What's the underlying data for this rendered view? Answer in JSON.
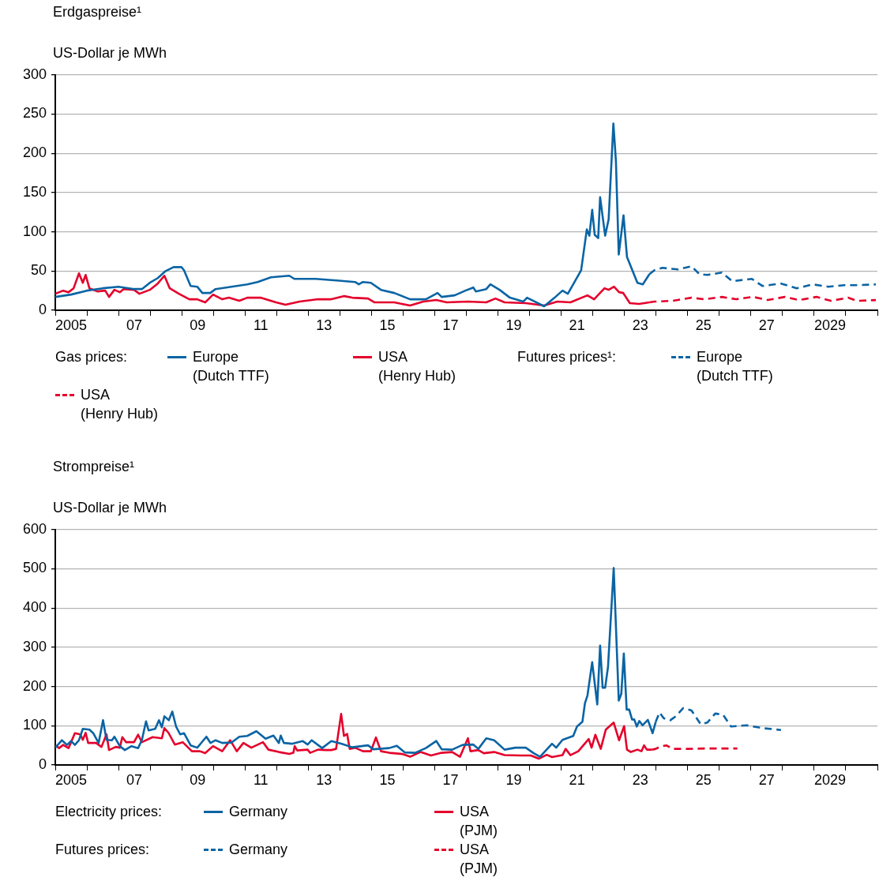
{
  "chart_data": [
    {
      "type": "line",
      "title": "Erdgaspreise¹",
      "ylabel": "US-Dollar je MWh",
      "xlim": [
        2004.5,
        2030.5
      ],
      "ylim": [
        0,
        300
      ],
      "yticks": [
        0,
        50,
        100,
        150,
        200,
        250,
        300
      ],
      "xticks": [
        {
          "value": 2004.5,
          "label": null
        },
        {
          "value": 2005,
          "label": "2005"
        },
        {
          "value": 2005.5,
          "label": null
        },
        {
          "value": 2006.5,
          "label": null
        },
        {
          "value": 2007,
          "label": "07"
        },
        {
          "value": 2007.5,
          "label": null
        },
        {
          "value": 2008.5,
          "label": null
        },
        {
          "value": 2009,
          "label": "09"
        },
        {
          "value": 2009.5,
          "label": null
        },
        {
          "value": 2010.5,
          "label": null
        },
        {
          "value": 2011,
          "label": "11"
        },
        {
          "value": 2011.5,
          "label": null
        },
        {
          "value": 2012.5,
          "label": null
        },
        {
          "value": 2013,
          "label": "13"
        },
        {
          "value": 2013.5,
          "label": null
        },
        {
          "value": 2014.5,
          "label": null
        },
        {
          "value": 2015,
          "label": "15"
        },
        {
          "value": 2015.5,
          "label": null
        },
        {
          "value": 2016.5,
          "label": null
        },
        {
          "value": 2017,
          "label": "17"
        },
        {
          "value": 2017.5,
          "label": null
        },
        {
          "value": 2018.5,
          "label": null
        },
        {
          "value": 2019,
          "label": "19"
        },
        {
          "value": 2019.5,
          "label": null
        },
        {
          "value": 2020.5,
          "label": null
        },
        {
          "value": 2021,
          "label": "21"
        },
        {
          "value": 2021.5,
          "label": null
        },
        {
          "value": 2022.5,
          "label": null
        },
        {
          "value": 2023,
          "label": "23"
        },
        {
          "value": 2023.5,
          "label": null
        },
        {
          "value": 2024.5,
          "label": null
        },
        {
          "value": 2025,
          "label": "25"
        },
        {
          "value": 2025.5,
          "label": null
        },
        {
          "value": 2026.5,
          "label": null
        },
        {
          "value": 2027,
          "label": "27"
        },
        {
          "value": 2027.5,
          "label": null
        },
        {
          "value": 2028.5,
          "label": null
        },
        {
          "value": 2029,
          "label": "2029"
        },
        {
          "value": 2029.5,
          "label": null
        },
        {
          "value": 2030.5,
          "label": null
        }
      ],
      "grid": "y",
      "legend": "bottom",
      "annotations": [
        "Gas prices:",
        "Futures prices¹:"
      ],
      "series": [
        {
          "name": "Europe (Dutch TTF)",
          "color": "#0a64a4",
          "line_style": "solid",
          "x": [
            2004.5,
            2005.0,
            2005.5,
            2006.0,
            2006.5,
            2007.0,
            2007.24,
            2007.49,
            2007.74,
            2007.99,
            2008.24,
            2008.49,
            2008.57,
            2008.78,
            2008.99,
            2009.15,
            2009.4,
            2009.57,
            2010.07,
            2010.57,
            2010.9,
            2011.32,
            2011.9,
            2012.06,
            2012.73,
            2013.39,
            2013.98,
            2014.1,
            2014.23,
            2014.48,
            2014.8,
            2015.22,
            2015.72,
            2016.22,
            2016.59,
            2016.72,
            2017.13,
            2017.47,
            2017.72,
            2017.8,
            2018.13,
            2018.26,
            2018.55,
            2018.88,
            2019.3,
            2019.42,
            2019.96,
            2020.29,
            2020.54,
            2020.71,
            2021.13,
            2021.31,
            2021.39,
            2021.48,
            2021.56,
            2021.67,
            2021.73,
            2021.89,
            2022.0,
            2022.15,
            2022.23,
            2022.32,
            2022.47,
            2022.58,
            2022.91,
            2023.08,
            2023.29
          ],
          "values": [
            17,
            20,
            25,
            28,
            30,
            27,
            27,
            35,
            41,
            50,
            55,
            55,
            51,
            31,
            30,
            22,
            22,
            27,
            30,
            33,
            36,
            42,
            44,
            40,
            40,
            38,
            36,
            33,
            36,
            35,
            26,
            22,
            14,
            14,
            22,
            17,
            19,
            25,
            29,
            24,
            27,
            33,
            26,
            16,
            11,
            16,
            5,
            16,
            25,
            21,
            51,
            103,
            95,
            128,
            96,
            92,
            144,
            95,
            116,
            238,
            190,
            71,
            121,
            68,
            35,
            33,
            46
          ]
        },
        {
          "name": "USA (Henry Hub)",
          "color": "#e4002b",
          "line_style": "solid",
          "x": [
            2004.5,
            2004.75,
            2004.92,
            2005.08,
            2005.25,
            2005.37,
            2005.46,
            2005.58,
            2005.83,
            2006.08,
            2006.2,
            2006.37,
            2006.54,
            2006.66,
            2006.99,
            2007.16,
            2007.49,
            2007.74,
            2007.95,
            2008.12,
            2008.41,
            2008.74,
            2008.99,
            2009.24,
            2009.49,
            2009.78,
            2009.99,
            2010.32,
            2010.57,
            2010.99,
            2011.48,
            2011.78,
            2012.23,
            2012.81,
            2013.23,
            2013.64,
            2013.89,
            2014.39,
            2014.6,
            2015.22,
            2015.72,
            2016.14,
            2016.55,
            2016.88,
            2017.55,
            2018.13,
            2018.42,
            2018.71,
            2019.38,
            2019.96,
            2020.38,
            2020.79,
            2021.33,
            2021.54,
            2021.87,
            2022.0,
            2022.17,
            2022.33,
            2022.46,
            2022.67,
            2022.96,
            2023.29
          ],
          "values": [
            21,
            25,
            23,
            28,
            47,
            35,
            45,
            28,
            24,
            25,
            17,
            26,
            23,
            27,
            26,
            21,
            26,
            34,
            44,
            28,
            21,
            14,
            14,
            10,
            20,
            14,
            16,
            12,
            16,
            16,
            10,
            7,
            11,
            14,
            14,
            18,
            16,
            15,
            10,
            10,
            6,
            11,
            13,
            10,
            11,
            10,
            15,
            10,
            9,
            6,
            11,
            10,
            19,
            14,
            28,
            26,
            30,
            23,
            22,
            9,
            8,
            10
          ]
        },
        {
          "name": "Europe (Dutch TTF)",
          "color": "#0a64a4",
          "line_style": "dashed",
          "x": [
            2023.29,
            2023.45,
            2023.7,
            2024.2,
            2024.62,
            2024.87,
            2025.12,
            2025.58,
            2025.91,
            2026.53,
            2026.86,
            2027.45,
            2027.95,
            2028.45,
            2028.95,
            2029.45,
            2029.95,
            2030.45
          ],
          "values": [
            46,
            51,
            54,
            52,
            56,
            46,
            45,
            48,
            37,
            40,
            31,
            34,
            28,
            33,
            30,
            32,
            32,
            33
          ]
        },
        {
          "name": "USA (Henry Hub)",
          "color": "#e4002b",
          "line_style": "dashed",
          "x": [
            2023.29,
            2023.45,
            2024.03,
            2024.62,
            2025.03,
            2025.58,
            2026.03,
            2026.57,
            2027.03,
            2027.57,
            2028.03,
            2028.57,
            2029.03,
            2029.57,
            2029.86,
            2030.45
          ],
          "values": [
            10,
            11,
            12,
            16,
            14,
            17,
            14,
            17,
            13,
            17,
            13,
            17,
            12,
            16,
            12,
            13
          ]
        }
      ]
    },
    {
      "type": "line",
      "title": "Strompreise¹",
      "ylabel": "US-Dollar je MWh",
      "xlim": [
        2004.5,
        2030.5
      ],
      "ylim": [
        0,
        600
      ],
      "yticks": [
        0,
        100,
        200,
        300,
        400,
        500,
        600
      ],
      "xticks": [
        {
          "value": 2004.5,
          "label": null
        },
        {
          "value": 2005,
          "label": "2005"
        },
        {
          "value": 2005.5,
          "label": null
        },
        {
          "value": 2006.5,
          "label": null
        },
        {
          "value": 2007,
          "label": "07"
        },
        {
          "value": 2007.5,
          "label": null
        },
        {
          "value": 2008.5,
          "label": null
        },
        {
          "value": 2009,
          "label": "09"
        },
        {
          "value": 2009.5,
          "label": null
        },
        {
          "value": 2010.5,
          "label": null
        },
        {
          "value": 2011,
          "label": "11"
        },
        {
          "value": 2011.5,
          "label": null
        },
        {
          "value": 2012.5,
          "label": null
        },
        {
          "value": 2013,
          "label": "13"
        },
        {
          "value": 2013.5,
          "label": null
        },
        {
          "value": 2014.5,
          "label": null
        },
        {
          "value": 2015,
          "label": "15"
        },
        {
          "value": 2015.5,
          "label": null
        },
        {
          "value": 2016.5,
          "label": null
        },
        {
          "value": 2017,
          "label": "17"
        },
        {
          "value": 2017.5,
          "label": null
        },
        {
          "value": 2018.5,
          "label": null
        },
        {
          "value": 2019,
          "label": "19"
        },
        {
          "value": 2019.5,
          "label": null
        },
        {
          "value": 2020.5,
          "label": null
        },
        {
          "value": 2021,
          "label": "21"
        },
        {
          "value": 2021.5,
          "label": null
        },
        {
          "value": 2022.5,
          "label": null
        },
        {
          "value": 2023,
          "label": "23"
        },
        {
          "value": 2023.5,
          "label": null
        },
        {
          "value": 2024.5,
          "label": null
        },
        {
          "value": 2025,
          "label": "25"
        },
        {
          "value": 2025.5,
          "label": null
        },
        {
          "value": 2026.5,
          "label": null
        },
        {
          "value": 2027,
          "label": "27"
        },
        {
          "value": 2027.5,
          "label": null
        },
        {
          "value": 2028.5,
          "label": null
        },
        {
          "value": 2029,
          "label": "2029"
        },
        {
          "value": 2029.5,
          "label": null
        },
        {
          "value": 2030.5,
          "label": null
        }
      ],
      "grid": "y",
      "legend": "bottom",
      "annotations": [
        "Electricity prices:",
        "Futures prices:"
      ],
      "series": [
        {
          "name": "Germany",
          "color": "#0a64a4",
          "line_style": "solid",
          "x": [
            2004.5,
            2004.71,
            2004.87,
            2005.0,
            2005.12,
            2005.25,
            2005.37,
            2005.58,
            2005.7,
            2005.87,
            2006.01,
            2006.12,
            2006.29,
            2006.37,
            2006.54,
            2006.7,
            2006.91,
            2007.12,
            2007.24,
            2007.37,
            2007.45,
            2007.66,
            2007.78,
            2007.87,
            2007.95,
            2008.09,
            2008.2,
            2008.32,
            2008.45,
            2008.57,
            2008.78,
            2008.99,
            2009.28,
            2009.41,
            2009.57,
            2009.78,
            2010.07,
            2010.32,
            2010.57,
            2010.86,
            2011.15,
            2011.4,
            2011.57,
            2011.63,
            2011.73,
            2011.98,
            2012.32,
            2012.48,
            2012.61,
            2012.94,
            2013.23,
            2013.56,
            2013.89,
            2014.39,
            2014.56,
            2015.06,
            2015.3,
            2015.55,
            2015.88,
            2016.22,
            2016.55,
            2016.72,
            2017.05,
            2017.38,
            2017.72,
            2017.88,
            2018.13,
            2018.38,
            2018.71,
            2019.05,
            2019.38,
            2019.63,
            2019.83,
            2020.21,
            2020.34,
            2020.54,
            2020.88,
            2021.0,
            2021.17,
            2021.25,
            2021.33,
            2021.48,
            2021.64,
            2021.73,
            2021.81,
            2021.89,
            2021.98,
            2022.16,
            2022.32,
            2022.4,
            2022.48,
            2022.57,
            2022.65,
            2022.74,
            2022.81,
            2022.89,
            2022.97,
            2023.07,
            2023.24,
            2023.39,
            2023.49
          ],
          "values": [
            44,
            63,
            51,
            61,
            51,
            63,
            92,
            90,
            81,
            56,
            114,
            64,
            63,
            72,
            48,
            38,
            48,
            43,
            64,
            111,
            88,
            92,
            114,
            96,
            124,
            114,
            136,
            98,
            78,
            81,
            50,
            44,
            72,
            56,
            63,
            56,
            57,
            72,
            74,
            86,
            67,
            75,
            56,
            75,
            56,
            54,
            61,
            52,
            63,
            43,
            61,
            54,
            45,
            50,
            40,
            43,
            49,
            32,
            31,
            43,
            61,
            40,
            39,
            51,
            52,
            41,
            68,
            63,
            39,
            44,
            44,
            30,
            21,
            54,
            44,
            64,
            74,
            98,
            110,
            157,
            177,
            262,
            154,
            304,
            197,
            197,
            250,
            502,
            164,
            181,
            284,
            141,
            141,
            116,
            116,
            98,
            112,
            101,
            115,
            81,
            110
          ]
        },
        {
          "name": "USA (PJM)",
          "color": "#e4002b",
          "line_style": "solid",
          "x": [
            2004.5,
            2004.62,
            2004.75,
            2004.92,
            2005.12,
            2005.29,
            2005.37,
            2005.46,
            2005.54,
            2005.79,
            2005.96,
            2006.12,
            2006.2,
            2006.41,
            2006.54,
            2006.62,
            2006.74,
            2006.99,
            2007.12,
            2007.24,
            2007.58,
            2007.87,
            2007.95,
            2008.08,
            2008.28,
            2008.53,
            2008.82,
            2009.07,
            2009.24,
            2009.49,
            2009.78,
            2010.03,
            2010.24,
            2010.45,
            2010.7,
            2010.91,
            2011.07,
            2011.24,
            2011.57,
            2011.9,
            2012.03,
            2012.07,
            2012.15,
            2012.48,
            2012.56,
            2012.81,
            2013.06,
            2013.23,
            2013.38,
            2013.54,
            2013.63,
            2013.73,
            2013.81,
            2013.98,
            2014.23,
            2014.48,
            2014.64,
            2014.8,
            2015.06,
            2015.47,
            2015.72,
            2016.05,
            2016.38,
            2016.72,
            2017.05,
            2017.3,
            2017.55,
            2017.63,
            2017.88,
            2018.05,
            2018.38,
            2018.71,
            2019.21,
            2019.54,
            2019.79,
            2020.04,
            2020.21,
            2020.54,
            2020.64,
            2020.79,
            2021.04,
            2021.37,
            2021.46,
            2021.58,
            2021.75,
            2021.91,
            2022.16,
            2022.33,
            2022.49,
            2022.58,
            2022.7,
            2022.91,
            2023.04,
            2023.12,
            2023.21,
            2023.37
          ],
          "values": [
            50,
            43,
            51,
            43,
            81,
            78,
            64,
            82,
            56,
            56,
            46,
            78,
            38,
            46,
            44,
            71,
            58,
            58,
            77,
            58,
            71,
            68,
            94,
            82,
            52,
            58,
            35,
            35,
            30,
            48,
            35,
            63,
            35,
            56,
            44,
            52,
            58,
            39,
            33,
            28,
            31,
            48,
            37,
            39,
            31,
            39,
            38,
            38,
            41,
            130,
            74,
            79,
            41,
            44,
            35,
            35,
            70,
            35,
            31,
            28,
            21,
            33,
            24,
            31,
            33,
            21,
            68,
            35,
            38,
            30,
            33,
            25,
            24,
            24,
            16,
            26,
            20,
            25,
            41,
            25,
            35,
            66,
            44,
            77,
            41,
            90,
            108,
            63,
            99,
            39,
            33,
            39,
            35,
            50,
            39,
            39
          ]
        },
        {
          "name": "Germany",
          "color": "#0a64a4",
          "line_style": "dashed",
          "x": [
            2023.49,
            2023.61,
            2023.74,
            2023.95,
            2024.12,
            2024.36,
            2024.62,
            2024.91,
            2025.12,
            2025.37,
            2025.62,
            2025.87,
            2026.37,
            2026.86,
            2027.45
          ],
          "values": [
            110,
            134,
            119,
            114,
            124,
            145,
            139,
            104,
            108,
            131,
            128,
            98,
            101,
            94,
            89
          ]
        },
        {
          "name": "USA (PJM)",
          "color": "#e4002b",
          "line_style": "dashed",
          "x": [
            2023.37,
            2023.49,
            2023.61,
            2023.82,
            2024.03,
            2024.53,
            2025.03,
            2025.53,
            2026.07
          ],
          "values": [
            39,
            41,
            46,
            50,
            41,
            41,
            42,
            42,
            42
          ]
        }
      ]
    }
  ]
}
